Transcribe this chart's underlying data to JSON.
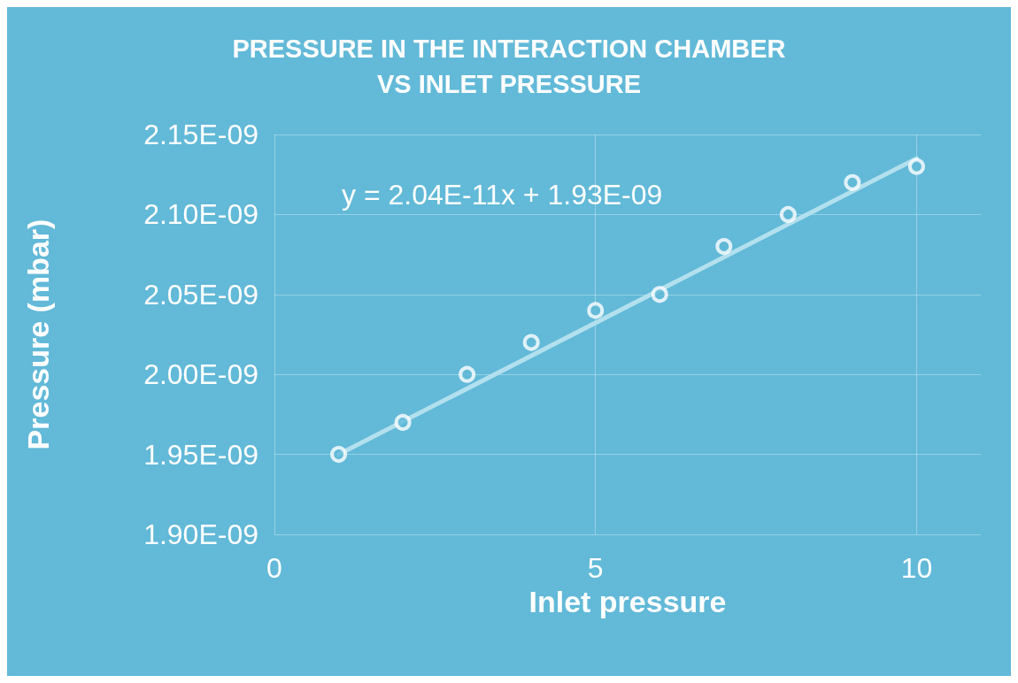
{
  "chart_data": {
    "type": "scatter",
    "title": "PRESSURE IN THE INTERACTION CHAMBER\nVS INLET PRESSURE",
    "xlabel": "Inlet pressure",
    "ylabel": "Pressure (mbar)",
    "x": [
      1,
      2,
      3,
      4,
      5,
      6,
      7,
      8,
      9,
      10
    ],
    "series": [
      {
        "color": "#ffffff",
        "values": [
          1.95e-09,
          1.97e-09,
          2e-09,
          2.02e-09,
          2.04e-09,
          2.05e-09,
          2.08e-09,
          2.1e-09,
          2.12e-09,
          2.13e-09
        ]
      },
      {
        "type": "line",
        "color": "#b3e0ee",
        "x": [
          1,
          10
        ],
        "values": [
          1.95e-09,
          2.135e-09
        ],
        "marker": "none"
      }
    ],
    "annotations": [
      "y = 2.04E-11x + 1.93E-09"
    ],
    "xlim": [
      0,
      11
    ],
    "xticks": [
      0,
      5,
      10
    ],
    "ylim": [
      1.9e-09,
      2.15e-09
    ],
    "yticks": [
      {
        "value": 1.9e-09,
        "label": "1.90E-09"
      },
      {
        "value": 1.95e-09,
        "label": "1.95E-09"
      },
      {
        "value": 2e-09,
        "label": "2.00E-09"
      },
      {
        "value": 2.05e-09,
        "label": "2.05E-09"
      },
      {
        "value": 2.1e-09,
        "label": "2.10E-09"
      },
      {
        "value": 2.15e-09,
        "label": "2.15E-09"
      }
    ],
    "grid": true,
    "marker": "circle"
  }
}
